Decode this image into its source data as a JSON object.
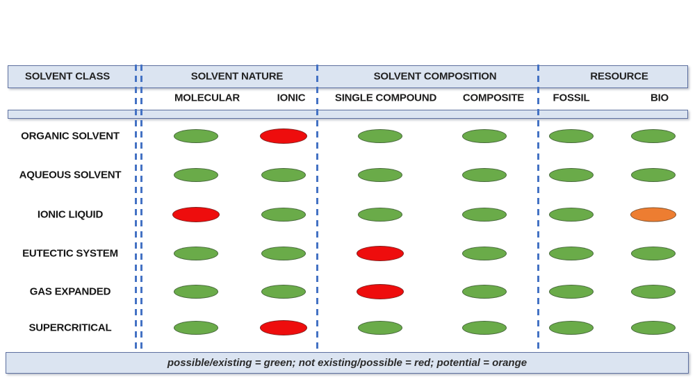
{
  "header": {
    "sections": [
      {
        "label": "SOLVENT CLASS"
      },
      {
        "label": "SOLVENT NATURE"
      },
      {
        "label": "SOLVENT COMPOSITION"
      },
      {
        "label": "RESOURCE"
      }
    ],
    "columns": [
      {
        "label": "MOLECULAR",
        "section": "SOLVENT NATURE"
      },
      {
        "label": "IONIC",
        "section": "SOLVENT NATURE"
      },
      {
        "label": "SINGLE COMPOUND",
        "section": "SOLVENT COMPOSITION"
      },
      {
        "label": "COMPOSITE",
        "section": "SOLVENT COMPOSITION"
      },
      {
        "label": "FOSSIL",
        "section": "RESOURCE"
      },
      {
        "label": "BIO",
        "section": "RESOURCE"
      }
    ]
  },
  "rows": [
    {
      "label": "ORGANIC SOLVENT",
      "cells": [
        "green",
        "red",
        "green",
        "green",
        "green",
        "green"
      ]
    },
    {
      "label": "AQUEOUS SOLVENT",
      "cells": [
        "green",
        "green",
        "green",
        "green",
        "green",
        "green"
      ]
    },
    {
      "label": "IONIC LIQUID",
      "cells": [
        "red",
        "green",
        "green",
        "green",
        "green",
        "orange"
      ]
    },
    {
      "label": "EUTECTIC SYSTEM",
      "cells": [
        "green",
        "green",
        "red",
        "green",
        "green",
        "green"
      ]
    },
    {
      "label": "GAS EXPANDED",
      "cells": [
        "green",
        "green",
        "red",
        "green",
        "green",
        "green"
      ]
    },
    {
      "label": "SUPERCRITICAL",
      "cells": [
        "green",
        "red",
        "green",
        "green",
        "green",
        "green"
      ]
    }
  ],
  "legend": {
    "text": "possible/existing = green; not existing/possible = red; potential = orange"
  },
  "status_colors": {
    "green": "#6aab49",
    "red": "#ee0d0d",
    "orange": "#ed7d31"
  },
  "accent_colors": {
    "dashed_line": "#4472c4",
    "band_fill": "#dbe4f1",
    "band_border": "#5d6f9f"
  }
}
